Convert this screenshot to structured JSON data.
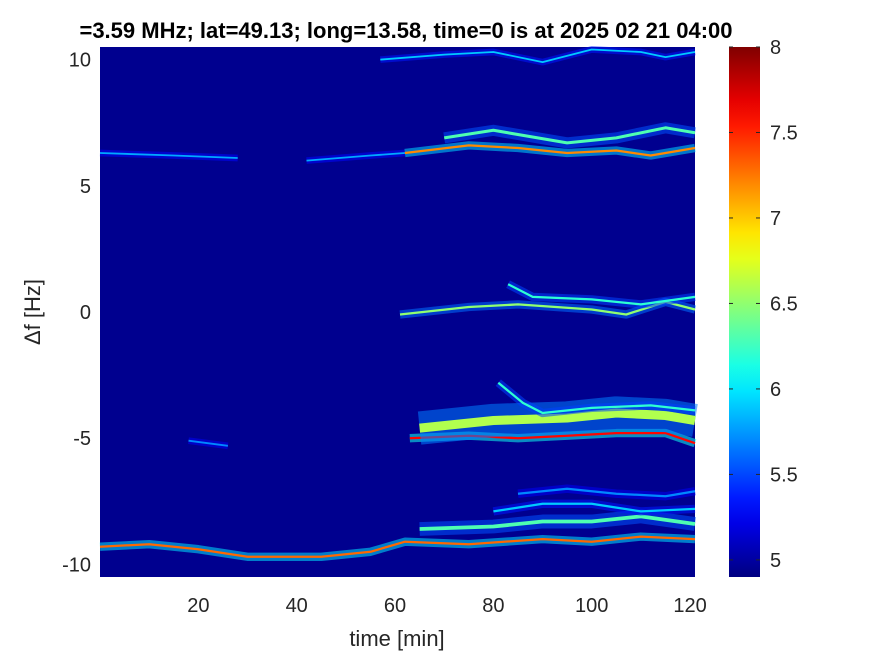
{
  "chart_data": {
    "type": "heatmap",
    "title": "=3.59 MHz;  lat=49.13; long=13.58, time=0 is at 2025 02 21 04:00",
    "xlabel": "time [min]",
    "ylabel": "Δf [Hz]",
    "xlim": [
      0,
      121
    ],
    "ylim": [
      -10.5,
      10.5
    ],
    "x_ticks": [
      20,
      40,
      60,
      80,
      100,
      120
    ],
    "y_ticks": [
      10,
      5,
      0,
      -5,
      -10
    ],
    "colorbar": {
      "range": [
        4.9,
        8.0
      ],
      "ticks": [
        5,
        5.5,
        6,
        6.5,
        7,
        7.5,
        8
      ],
      "colormap": "jet"
    },
    "background_value": 4.9,
    "traces": [
      {
        "points": [
          [
            0,
            6.3
          ],
          [
            15,
            6.2
          ],
          [
            28,
            6.1
          ]
        ],
        "peak": 5.8,
        "width": 0.12
      },
      {
        "points": [
          [
            42,
            6.0
          ],
          [
            55,
            6.2
          ],
          [
            62,
            6.3
          ]
        ],
        "peak": 5.8,
        "width": 0.12
      },
      {
        "points": [
          [
            62,
            6.3
          ],
          [
            75,
            6.6
          ],
          [
            85,
            6.5
          ],
          [
            95,
            6.3
          ],
          [
            105,
            6.4
          ],
          [
            112,
            6.2
          ],
          [
            121,
            6.5
          ]
        ],
        "peak": 7.2,
        "width": 0.15
      },
      {
        "points": [
          [
            70,
            6.9
          ],
          [
            80,
            7.2
          ],
          [
            95,
            6.7
          ],
          [
            105,
            6.9
          ],
          [
            115,
            7.3
          ],
          [
            121,
            7.1
          ]
        ],
        "peak": 6.3,
        "width": 0.2
      },
      {
        "points": [
          [
            57,
            10.0
          ],
          [
            70,
            10.2
          ],
          [
            80,
            10.3
          ],
          [
            90,
            9.9
          ],
          [
            100,
            10.4
          ],
          [
            110,
            10.3
          ],
          [
            115,
            10.1
          ],
          [
            121,
            10.3
          ]
        ],
        "peak": 5.9,
        "width": 0.12
      },
      {
        "points": [
          [
            61,
            -0.1
          ],
          [
            75,
            0.2
          ],
          [
            85,
            0.3
          ],
          [
            100,
            0.1
          ],
          [
            107,
            -0.1
          ],
          [
            115,
            0.4
          ],
          [
            121,
            0.1
          ]
        ],
        "peak": 6.5,
        "width": 0.15
      },
      {
        "points": [
          [
            83,
            1.1
          ],
          [
            88,
            0.6
          ],
          [
            100,
            0.5
          ],
          [
            110,
            0.3
          ],
          [
            121,
            0.6
          ]
        ],
        "peak": 6.2,
        "width": 0.15
      },
      {
        "points": [
          [
            18,
            -5.1
          ],
          [
            26,
            -5.3
          ]
        ],
        "peak": 5.7,
        "width": 0.12
      },
      {
        "points": [
          [
            63,
            -5.0
          ],
          [
            75,
            -4.9
          ],
          [
            85,
            -5.0
          ],
          [
            95,
            -4.9
          ],
          [
            105,
            -4.8
          ],
          [
            115,
            -4.8
          ],
          [
            121,
            -5.2
          ]
        ],
        "peak": 7.6,
        "width": 0.15
      },
      {
        "points": [
          [
            65,
            -4.6
          ],
          [
            80,
            -4.3
          ],
          [
            95,
            -4.2
          ],
          [
            105,
            -4.0
          ],
          [
            115,
            -4.1
          ],
          [
            121,
            -4.3
          ]
        ],
        "peak": 6.6,
        "width": 0.6
      },
      {
        "points": [
          [
            81,
            -2.8
          ],
          [
            86,
            -3.6
          ],
          [
            90,
            -4.0
          ],
          [
            100,
            -3.8
          ],
          [
            112,
            -3.7
          ],
          [
            121,
            -3.9
          ]
        ],
        "peak": 6.2,
        "width": 0.15
      },
      {
        "points": [
          [
            0,
            -9.3
          ],
          [
            10,
            -9.2
          ],
          [
            20,
            -9.4
          ],
          [
            30,
            -9.7
          ],
          [
            45,
            -9.7
          ],
          [
            55,
            -9.5
          ],
          [
            62,
            -9.1
          ],
          [
            75,
            -9.2
          ],
          [
            90,
            -9.0
          ],
          [
            100,
            -9.1
          ],
          [
            110,
            -8.9
          ],
          [
            121,
            -9.0
          ]
        ],
        "peak": 7.3,
        "width": 0.15
      },
      {
        "points": [
          [
            65,
            -8.6
          ],
          [
            80,
            -8.5
          ],
          [
            90,
            -8.3
          ],
          [
            100,
            -8.3
          ],
          [
            110,
            -8.1
          ],
          [
            121,
            -8.4
          ]
        ],
        "peak": 6.3,
        "width": 0.25
      },
      {
        "points": [
          [
            80,
            -7.9
          ],
          [
            90,
            -7.6
          ],
          [
            100,
            -7.6
          ],
          [
            110,
            -7.9
          ],
          [
            121,
            -7.8
          ]
        ],
        "peak": 5.9,
        "width": 0.15
      },
      {
        "points": [
          [
            85,
            -7.2
          ],
          [
            95,
            -7.0
          ],
          [
            105,
            -7.2
          ],
          [
            115,
            -7.3
          ],
          [
            121,
            -7.1
          ]
        ],
        "peak": 5.7,
        "width": 0.15
      }
    ]
  }
}
